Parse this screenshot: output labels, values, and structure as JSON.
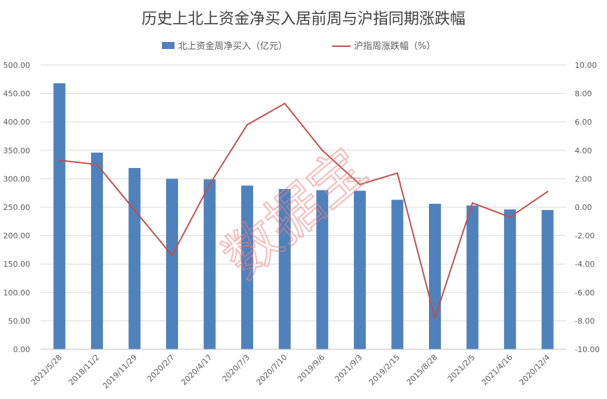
{
  "chart_data": {
    "type": "bar",
    "title": "历史上北上资金净买入居前周与沪指同期涨跌幅",
    "categories": [
      "2021/5/28",
      "2018/11/2",
      "2019/11/29",
      "2020/2/7",
      "2020/4/17",
      "2020/7/3",
      "2020/7/10",
      "2019/9/6",
      "2021/9/3",
      "2019/2/15",
      "2015/8/28",
      "2021/2/5",
      "2021/4/16",
      "2020/12/4"
    ],
    "series": [
      {
        "name": "北上资金周净买入（亿元）",
        "type": "bar",
        "axis": "left",
        "color": "#4f81bd",
        "values": [
          468,
          346,
          319,
          300,
          299,
          288,
          282,
          280,
          279,
          263,
          256,
          253,
          246,
          245
        ]
      },
      {
        "name": "沪指周涨跌幅（%）",
        "type": "line",
        "axis": "right",
        "color": "#c0504d",
        "values": [
          3.3,
          3.0,
          -0.2,
          -3.4,
          1.6,
          5.8,
          7.3,
          4.0,
          1.6,
          2.4,
          -7.8,
          0.3,
          -0.7,
          1.1
        ]
      }
    ],
    "y_left": {
      "range": [
        0,
        500
      ],
      "ticks": [
        "0.00",
        "50.00",
        "100.00",
        "150.00",
        "200.00",
        "250.00",
        "300.00",
        "350.00",
        "400.00",
        "450.00",
        "500.00"
      ]
    },
    "y_right": {
      "range": [
        -10,
        10
      ],
      "ticks": [
        "-10.00",
        "-8.00",
        "-6.00",
        "-4.00",
        "-2.00",
        "0.00",
        "2.00",
        "4.00",
        "6.00",
        "8.00",
        "10.00"
      ]
    },
    "grid": true,
    "legend_position": "top",
    "watermark": "数据宝"
  }
}
